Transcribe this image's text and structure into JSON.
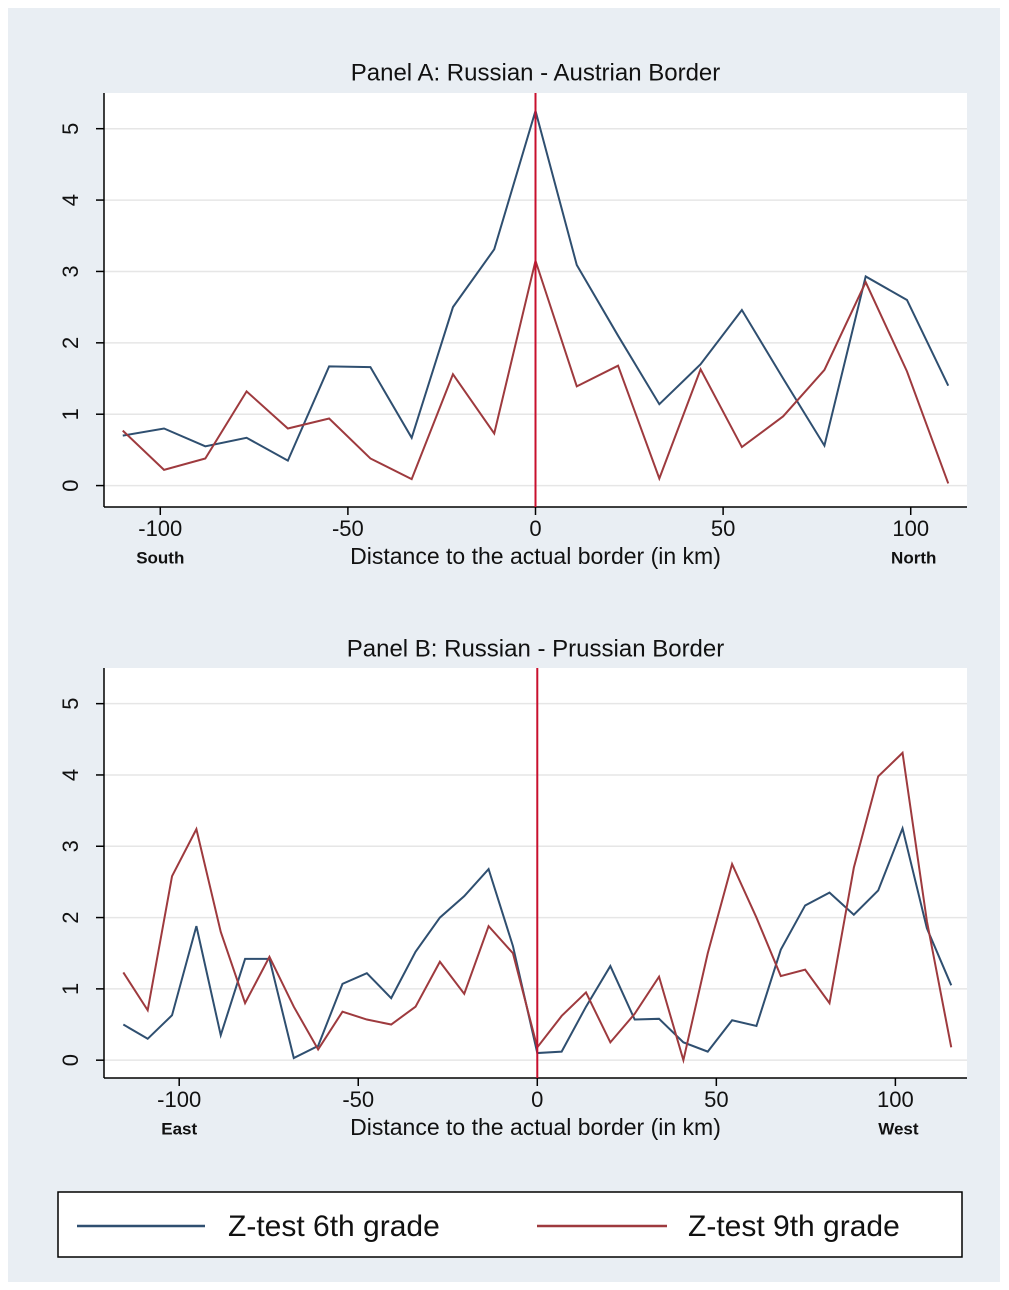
{
  "chart_data": [
    {
      "type": "line",
      "title": "Panel A: Russian - Austrian Border",
      "xlabel": "Distance to the actual border (in km)",
      "annotations": [
        "South",
        "North"
      ],
      "x": [
        -110,
        -99,
        -88,
        -77,
        -66,
        -55,
        -44,
        -33,
        -22,
        -11,
        0,
        11,
        22,
        33,
        44,
        55,
        66,
        77,
        88,
        99,
        110
      ],
      "series": [
        {
          "name": "Z-test 6th grade",
          "color": "#2f4f70",
          "values": [
            0.7,
            0.8,
            0.55,
            0.67,
            0.35,
            1.67,
            1.66,
            0.67,
            2.5,
            3.31,
            5.25,
            3.09,
            2.1,
            1.14,
            1.7,
            2.46,
            1.5,
            0.56,
            2.93,
            2.6,
            1.4
          ]
        },
        {
          "name": "Z-test 9th grade",
          "color": "#9e3a3e",
          "values": [
            0.77,
            0.22,
            0.38,
            1.32,
            0.8,
            0.94,
            0.38,
            0.09,
            1.56,
            0.73,
            3.15,
            1.39,
            1.68,
            0.1,
            1.63,
            0.54,
            0.97,
            1.62,
            2.85,
            1.6,
            0.03
          ]
        }
      ],
      "vline": 0,
      "vline_color": "#c8102e",
      "xlim": [
        -115,
        115
      ],
      "ylim": [
        -0.3,
        5.5
      ],
      "xticks": [
        -100,
        -50,
        0,
        50,
        100
      ],
      "yticks": [
        0,
        1,
        2,
        3,
        4,
        5
      ],
      "grid": true
    },
    {
      "type": "line",
      "title": "Panel B: Russian - Prussian Border",
      "xlabel": "Distance to the actual border (in km)",
      "annotations": [
        "East",
        "West"
      ],
      "x": [
        -115.6,
        -108.8,
        -102,
        -95.2,
        -88.4,
        -81.6,
        -74.8,
        -68,
        -61.2,
        -54.4,
        -47.6,
        -40.8,
        -34,
        -27.2,
        -20.4,
        -13.6,
        -6.8,
        0,
        6.8,
        13.6,
        20.4,
        27.2,
        34,
        40.8,
        47.6,
        54.4,
        61.2,
        68,
        74.8,
        81.6,
        88.4,
        95.2,
        102,
        108.8,
        115.6
      ],
      "series": [
        {
          "name": "Z-test 6th grade",
          "color": "#2f4f70",
          "values": [
            0.5,
            0.3,
            0.63,
            1.88,
            0.35,
            1.42,
            1.42,
            0.03,
            0.2,
            1.07,
            1.22,
            0.87,
            1.52,
            2.0,
            2.3,
            2.68,
            1.6,
            0.1,
            0.12,
            0.75,
            1.32,
            0.57,
            0.58,
            0.25,
            0.12,
            0.56,
            0.48,
            1.55,
            2.17,
            2.35,
            2.04,
            2.38,
            3.25,
            1.85,
            1.05
          ]
        },
        {
          "name": "Z-test 9th grade",
          "color": "#9e3a3e",
          "values": [
            1.23,
            0.7,
            2.58,
            3.24,
            1.8,
            0.8,
            1.45,
            0.75,
            0.15,
            0.68,
            0.57,
            0.5,
            0.75,
            1.38,
            0.93,
            1.88,
            1.5,
            0.18,
            0.62,
            0.95,
            0.25,
            0.65,
            1.17,
            0.0,
            1.5,
            2.75,
            2.0,
            1.18,
            1.27,
            0.8,
            2.7,
            3.98,
            4.31,
            1.95,
            0.18
          ]
        }
      ],
      "vline": 0,
      "vline_color": "#c8102e",
      "xlim": [
        -121,
        120
      ],
      "ylim": [
        -0.25,
        5.5
      ],
      "xticks": [
        -100,
        -50,
        0,
        50,
        100
      ],
      "yticks": [
        0,
        1,
        2,
        3,
        4,
        5
      ],
      "grid": true
    }
  ]
}
